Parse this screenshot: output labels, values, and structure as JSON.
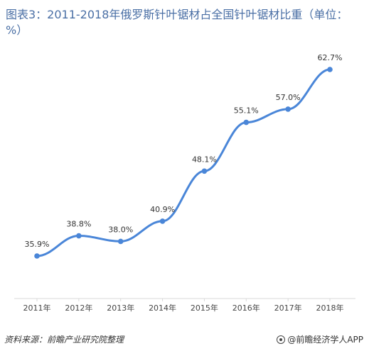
{
  "chart_data": {
    "type": "line",
    "title": "图表3：2011-2018年俄罗斯针叶锯材占全国针叶锯材比重（单位：%）",
    "categories": [
      "2011年",
      "2012年",
      "2013年",
      "2014年",
      "2015年",
      "2016年",
      "2017年",
      "2018年"
    ],
    "series": [
      {
        "values": [
          35.9,
          38.8,
          38.0,
          40.9,
          48.1,
          55.1,
          57.0,
          62.7
        ]
      }
    ],
    "data_labels": [
      "35.9%",
      "38.8%",
      "38.0%",
      "40.9%",
      "48.1%",
      "55.1%",
      "57.0%",
      "62.7%"
    ],
    "xlabel": "",
    "ylabel": "",
    "y_axis_visible": false,
    "grid": false,
    "line_color": "#4a86d8"
  },
  "footer": {
    "source": "资料来源：前瞻产业研究院整理",
    "brand": "@前瞻经济学人APP"
  }
}
